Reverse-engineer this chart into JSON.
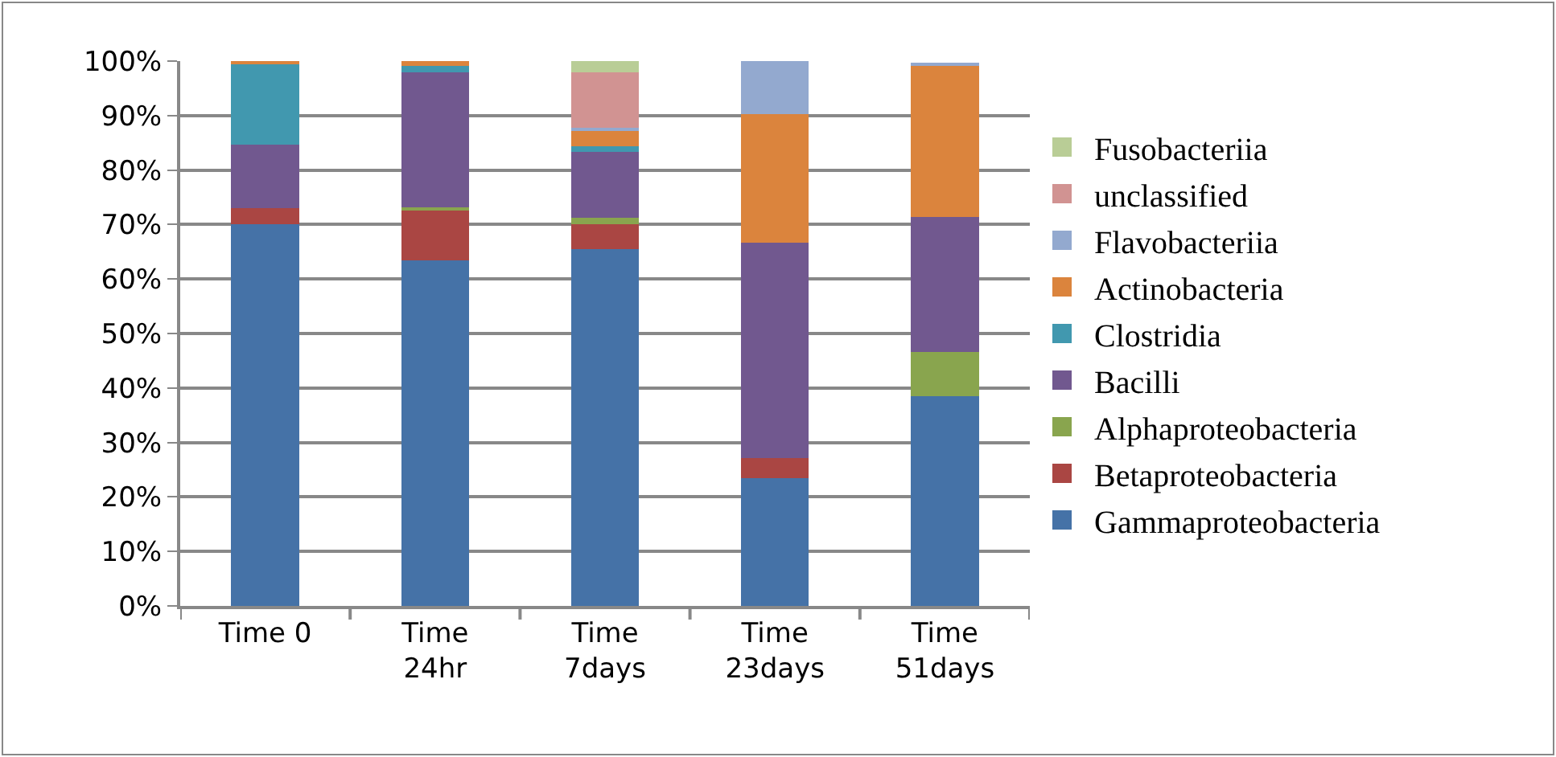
{
  "chart_data": {
    "type": "bar",
    "stacked": true,
    "categories": [
      "Time 0",
      "Time\n24hr",
      "Time\n7days",
      "Time\n23days",
      "Time\n51days"
    ],
    "series": [
      {
        "name": "Gammaproteobacteria",
        "color": "#4572a7",
        "values": [
          70,
          63.4,
          65.5,
          23.5,
          38.5
        ]
      },
      {
        "name": "Betaproteobacteria",
        "color": "#aa4643",
        "values": [
          3,
          9.3,
          4.5,
          3.6,
          0
        ]
      },
      {
        "name": "Alphaproteobacteria",
        "color": "#89a54e",
        "values": [
          0,
          0.5,
          1.3,
          0,
          8.1
        ]
      },
      {
        "name": "Bacilli",
        "color": "#71588f",
        "values": [
          11.6,
          24.7,
          12.1,
          39.6,
          24.8
        ]
      },
      {
        "name": "Clostridia",
        "color": "#4198af",
        "values": [
          15.1,
          1.2,
          0.9,
          0,
          0
        ]
      },
      {
        "name": "Actinobacteria",
        "color": "#db843d",
        "values": [
          0.3,
          0.9,
          2.8,
          23.6,
          27.9
        ]
      },
      {
        "name": "Flavobacteriia",
        "color": "#93a9cf",
        "values": [
          0,
          0,
          0.6,
          9.7,
          0.4
        ]
      },
      {
        "name": "unclassified",
        "color": "#d19392",
        "values": [
          0,
          0,
          10.3,
          0,
          0
        ]
      },
      {
        "name": "Fusobacteriia",
        "color": "#b9cd96",
        "values": [
          0,
          0,
          2,
          0,
          0
        ]
      }
    ],
    "ylim": [
      0,
      100
    ],
    "yticks": [
      {
        "value": 0,
        "label": "0%"
      },
      {
        "value": 10,
        "label": "10%"
      },
      {
        "value": 20,
        "label": "20%"
      },
      {
        "value": 30,
        "label": "30%"
      },
      {
        "value": 40,
        "label": "40%"
      },
      {
        "value": 50,
        "label": "50%"
      },
      {
        "value": 60,
        "label": "60%"
      },
      {
        "value": 70,
        "label": "70%"
      },
      {
        "value": 80,
        "label": "80%"
      },
      {
        "value": 90,
        "label": "90%"
      },
      {
        "value": 100,
        "label": "100%"
      }
    ],
    "grid": "y",
    "legend": "right"
  }
}
